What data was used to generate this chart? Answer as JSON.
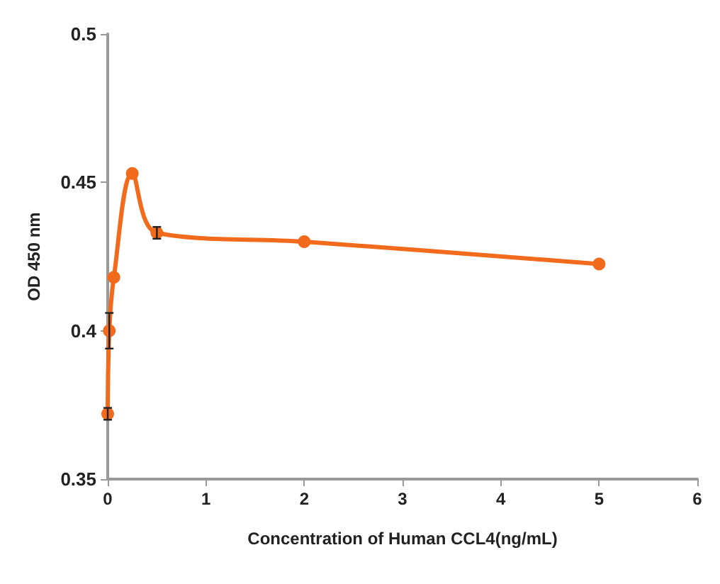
{
  "chart_data": {
    "type": "line",
    "xlabel": "Concentration of Human CCL4(ng/mL)",
    "ylabel": "OD 450 nm",
    "x": [
      0,
      0.016,
      0.0625,
      0.25,
      0.5,
      2,
      5
    ],
    "series": [
      {
        "color": "#f26a1b",
        "values": [
          0.372,
          0.4,
          0.418,
          0.453,
          0.433,
          0.43,
          0.4225
        ],
        "errors": [
          0.002,
          0.006,
          null,
          null,
          0.002,
          null,
          null
        ]
      }
    ],
    "xlim": [
      0,
      6
    ],
    "xticks": [
      0,
      1,
      2,
      3,
      4,
      5,
      6
    ],
    "ylim": [
      0.35,
      0.5
    ],
    "yticks": [
      0.35,
      0.4,
      0.45,
      0.5
    ],
    "grid": false,
    "marker": "circle",
    "line_style": "solid"
  }
}
